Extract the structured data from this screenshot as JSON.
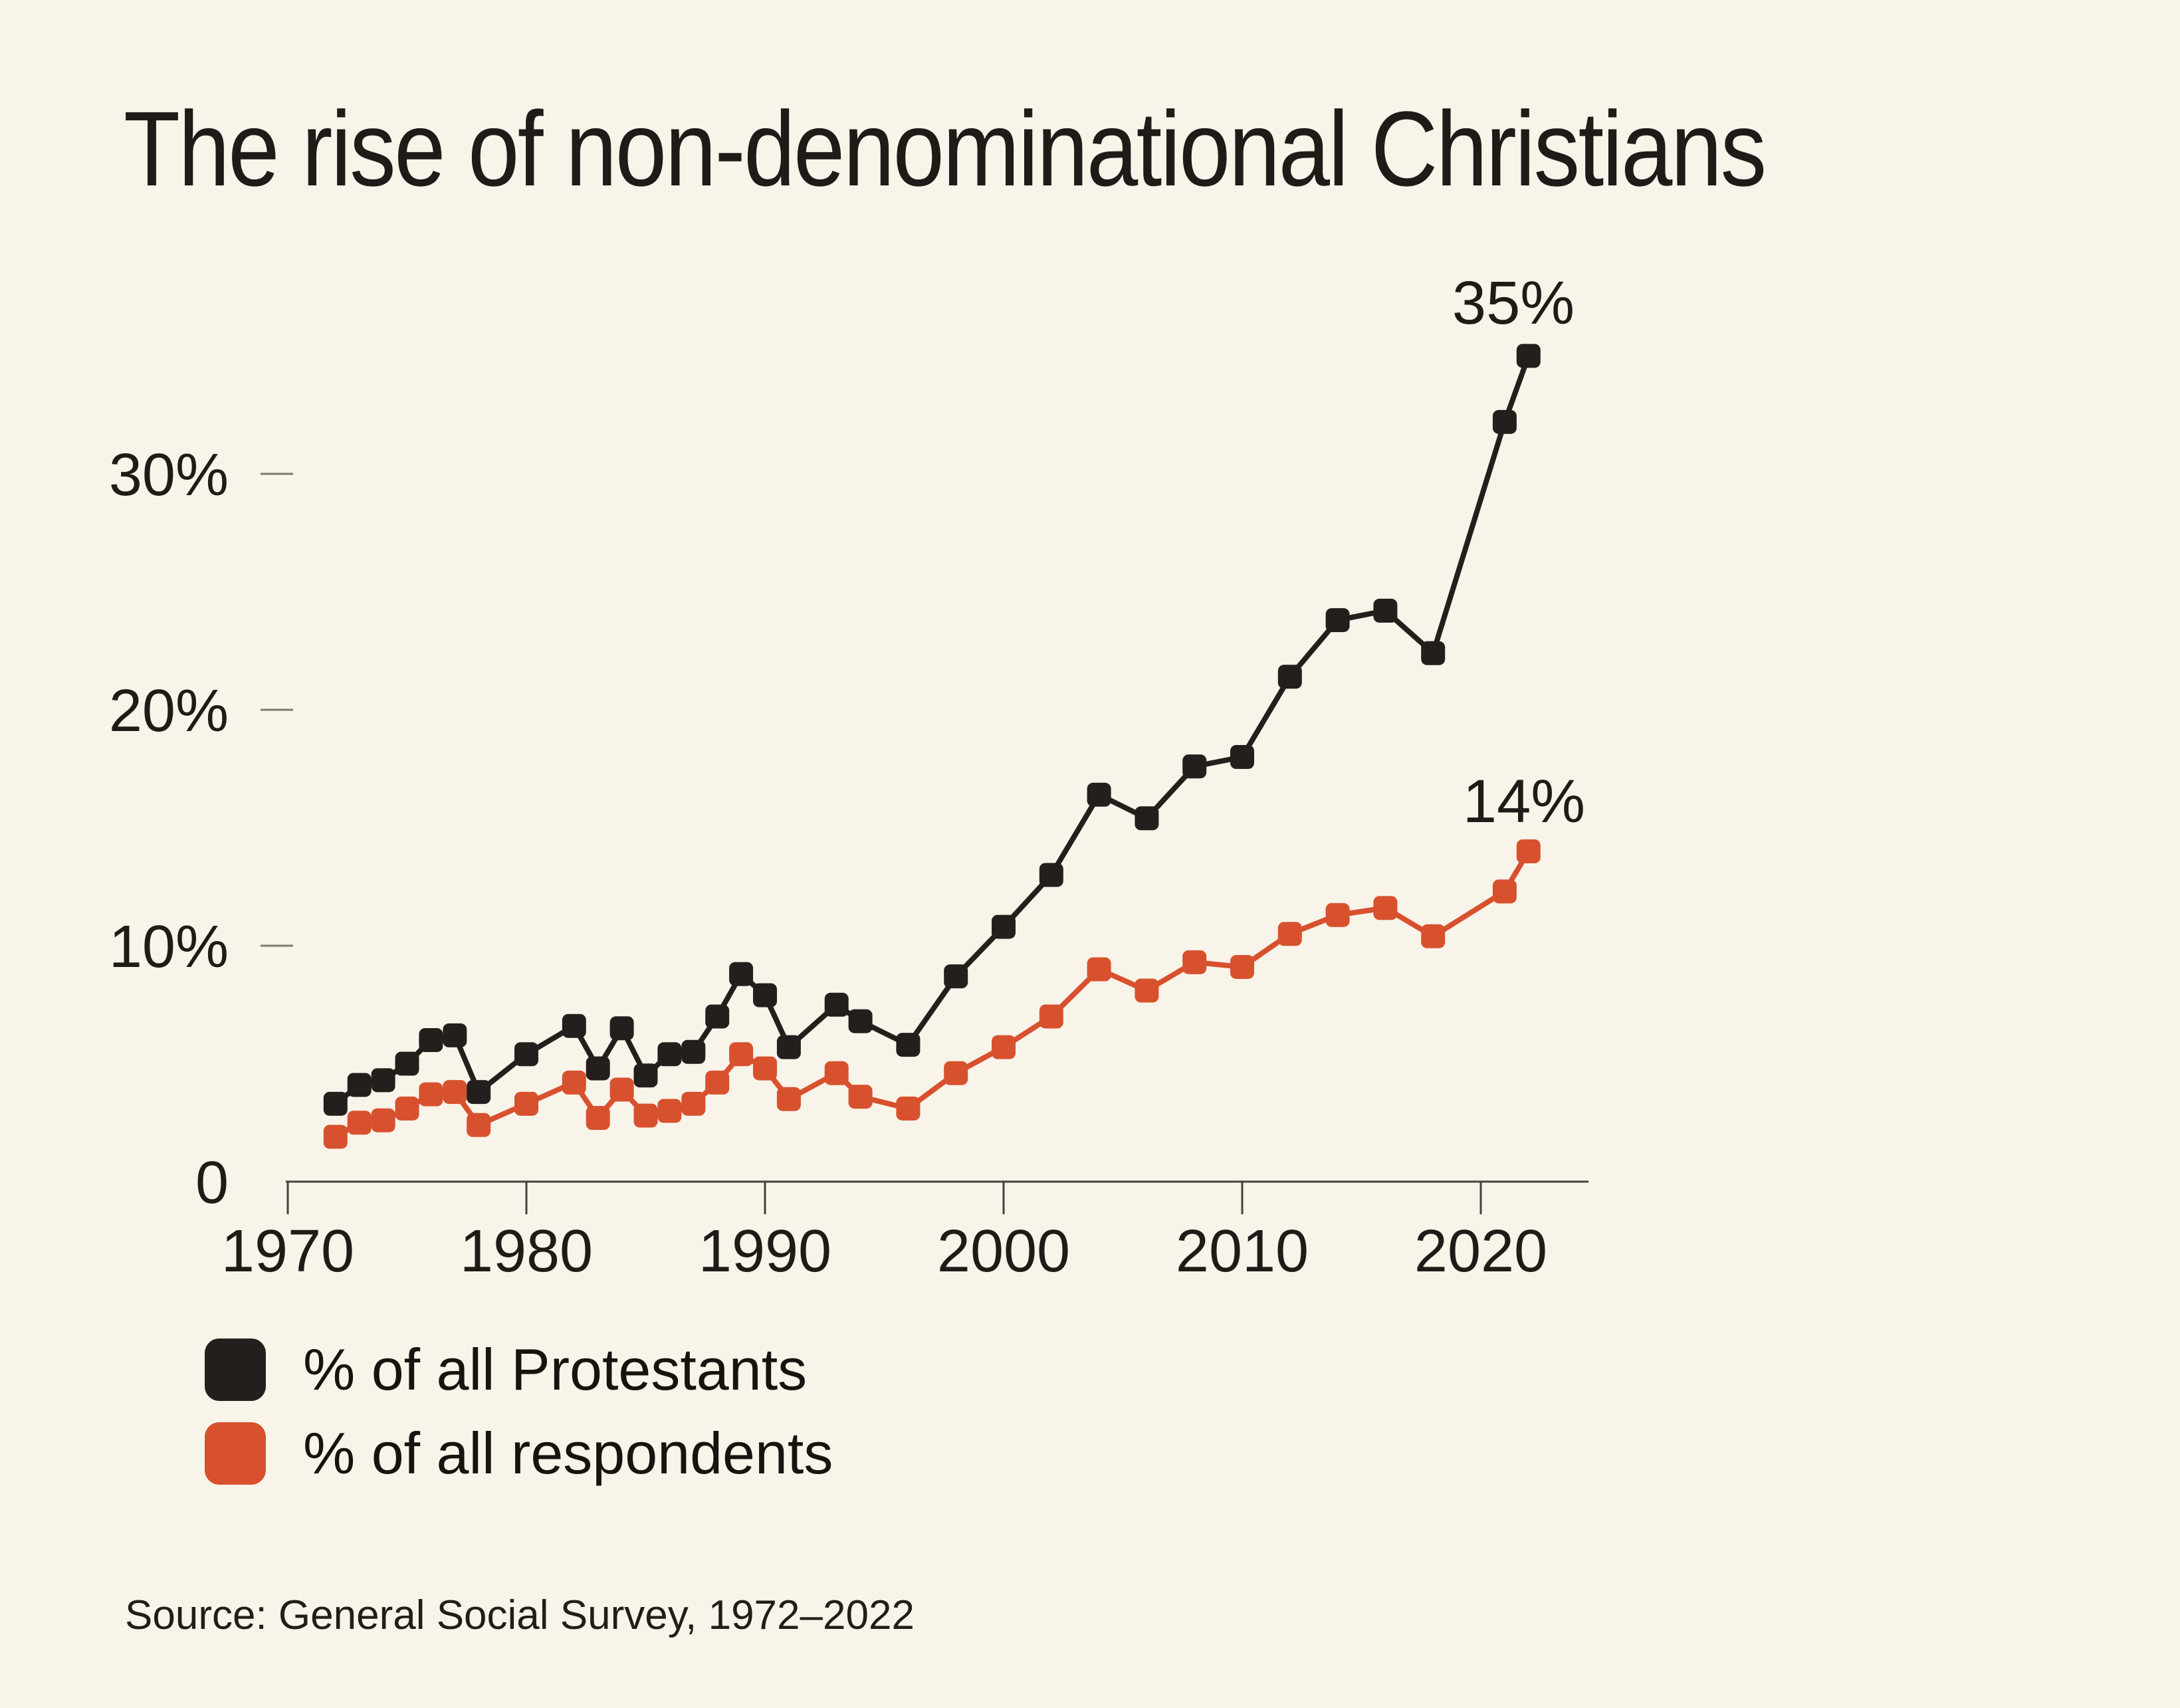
{
  "title": "The rise of non-denominational Christians",
  "source": "Source: General Social Survey, 1972–2022",
  "annotations": {
    "protestants": "35%",
    "respondents": "14%"
  },
  "legend": {
    "items": [
      {
        "label": "% of all Protestants",
        "color": "#241f1d"
      },
      {
        "label": "% of all respondents",
        "color": "#d8512e"
      }
    ]
  },
  "colors": {
    "background": "#f9f4e9",
    "protestants": "#241f1d",
    "respondents": "#d8512e",
    "axis": "#45413a",
    "grid_dash": "#7d7970",
    "text": "#1f1b18"
  },
  "chart_data": {
    "type": "line",
    "title": "The rise of non-denominational Christians",
    "xlabel": "",
    "ylabel": "",
    "xlim": [
      1970,
      2024.5
    ],
    "ylim": [
      0,
      37
    ],
    "grid": false,
    "legend_position": "bottom-left",
    "marker": "rounded-square",
    "x": [
      1972,
      1973,
      1974,
      1975,
      1976,
      1977,
      1978,
      1980,
      1982,
      1983,
      1984,
      1985,
      1986,
      1987,
      1988,
      1989,
      1990,
      1991,
      1993,
      1994,
      1996,
      1998,
      2000,
      2002,
      2004,
      2006,
      2008,
      2010,
      2012,
      2014,
      2016,
      2018,
      2021,
      2022
    ],
    "series": [
      {
        "name": "% of all respondents",
        "color": "#d8512e",
        "values": [
          1.9,
          2.5,
          2.6,
          3.1,
          3.7,
          3.8,
          2.4,
          3.3,
          4.2,
          2.7,
          3.9,
          2.8,
          3.0,
          3.3,
          4.2,
          5.4,
          4.8,
          3.5,
          4.6,
          3.6,
          3.1,
          4.6,
          5.7,
          7.0,
          9.0,
          8.1,
          9.3,
          9.1,
          10.5,
          11.3,
          11.6,
          10.4,
          12.3,
          14.0
        ]
      },
      {
        "name": "% of all Protestants",
        "color": "#241f1d",
        "values": [
          3.3,
          4.1,
          4.3,
          5.0,
          6.0,
          6.2,
          3.8,
          5.4,
          6.6,
          4.8,
          6.5,
          4.5,
          5.4,
          5.5,
          7.0,
          8.8,
          7.9,
          5.7,
          7.5,
          6.8,
          5.8,
          8.7,
          10.8,
          13.0,
          16.4,
          15.4,
          17.6,
          18.0,
          21.4,
          23.8,
          24.2,
          22.4,
          32.2,
          35.0
        ]
      }
    ],
    "xticks": [
      1970,
      1980,
      1990,
      2000,
      2010,
      2020
    ],
    "yticks": [
      {
        "v": 0,
        "label": "0"
      },
      {
        "v": 10,
        "label": "10%"
      },
      {
        "v": 20,
        "label": "20%"
      },
      {
        "v": 30,
        "label": "30%"
      }
    ]
  }
}
